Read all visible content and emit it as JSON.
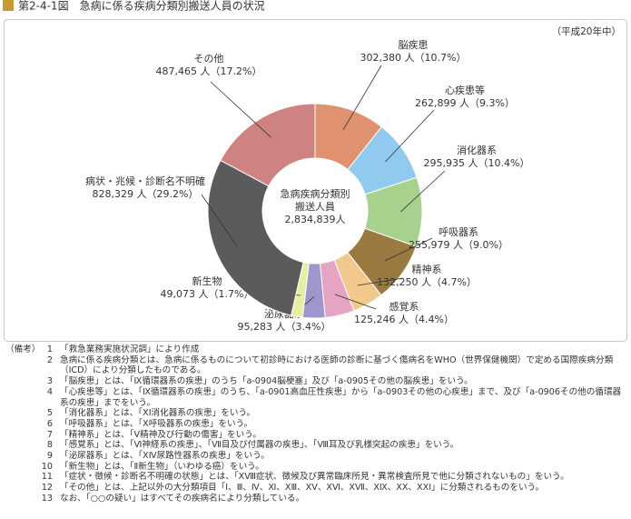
{
  "chart_data": {
    "type": "donut",
    "title": "第2-4-1図　急病に係る疾病分類別搬送人員の状況",
    "subtitle": "（平成20年中）",
    "center_label": [
      "急病疾病分類別",
      "搬送人員",
      "2,834,839人"
    ],
    "categories": [
      "脳疾患",
      "心疾患等",
      "消化器系",
      "呼吸器系",
      "精神系",
      "感覚系",
      "泌尿器系",
      "新生物",
      "病状・兆候・診断名不明確",
      "その他"
    ],
    "values": [
      302380,
      262899,
      295935,
      255979,
      132250,
      125246,
      95283,
      49073,
      828329,
      487465
    ],
    "value_labels": [
      "302,380 人（10.7%）",
      "262,899 人（9.3%）",
      "295,935 人（10.4%）",
      "255,979 人（9.0%）",
      "132,250 人（4.7%）",
      "125,246 人（4.4%）",
      "95,283 人（3.4%）",
      "49,073 人（1.7%）",
      "828,329 人（29.2%）",
      "487,465 人（17.2%）"
    ],
    "colors": [
      "#e0916f",
      "#92c9ef",
      "#a9d18e",
      "#9a7a40",
      "#f1c98c",
      "#e6a3c2",
      "#9d97cd",
      "#e6eea3",
      "#5b5b5b",
      "#cf8282"
    ]
  },
  "notes": {
    "heading": "（備考）",
    "items": [
      {
        "num": "1",
        "text": "「救急業務実施状況調」により作成"
      },
      {
        "num": "2",
        "text": "急病に係る疾病分類とは、急病に係るものについて初診時における医師の診断に基づく傷病名をWHO（世界保健機関）で定める国際疾病分類（ICD）により分類したものである。"
      },
      {
        "num": "3",
        "text": "「脳疾患」とは、「Ⅸ循環器系の疾患」のうち「a-0904脳梗塞」及び「a-0905その他の脳疾患」をいう。"
      },
      {
        "num": "4",
        "text": "「心疾患等」とは、「Ⅸ循環器系の疾患」のうち、「a-0901高血圧性疾患」から「a-0903その他の心疾患」まで、及び「a-0906その他の循環器系の疾患」までをいう。"
      },
      {
        "num": "5",
        "text": "「消化器系」とは、「ⅩⅠ消化器系の疾患」をいう。"
      },
      {
        "num": "6",
        "text": "「呼吸器系」とは、「Ⅹ呼吸器系の疾患」をいう。"
      },
      {
        "num": "7",
        "text": "「精神系」とは、「Ⅴ精神及び行動の傷害」をいう。"
      },
      {
        "num": "8",
        "text": "「感覚系」とは、「Ⅵ神経系の疾患」、「Ⅶ目及び付属器の疾患」、「Ⅷ耳及び乳様突起の疾患」をいう。"
      },
      {
        "num": "9",
        "text": "「泌尿器系」とは、「ⅩⅣ尿路性器系の疾患」をいう。"
      },
      {
        "num": "10",
        "text": "「新生物」とは、「Ⅱ新生物」（いわゆる癌）をいう。"
      },
      {
        "num": "11",
        "text": "「症状・徴候・診断名不明確の状態」とは、「ⅩⅧ症状、徴候及び異常臨床所見・異常検査所見で他に分類されないもの」をいう。"
      },
      {
        "num": "12",
        "text": "「その他」とは、上記以外の大分類項目「Ⅰ、Ⅲ、Ⅳ、Ⅺ、ⅩⅢ、ⅩⅤ、ⅩⅥ、ⅩⅦ、ⅩⅨ、ⅩⅩ、ⅩⅩⅠ」に分類されるものをいう。"
      },
      {
        "num": "13",
        "text": "なお、「○○の疑い」はすべてその疾病名により分類している。"
      }
    ]
  }
}
